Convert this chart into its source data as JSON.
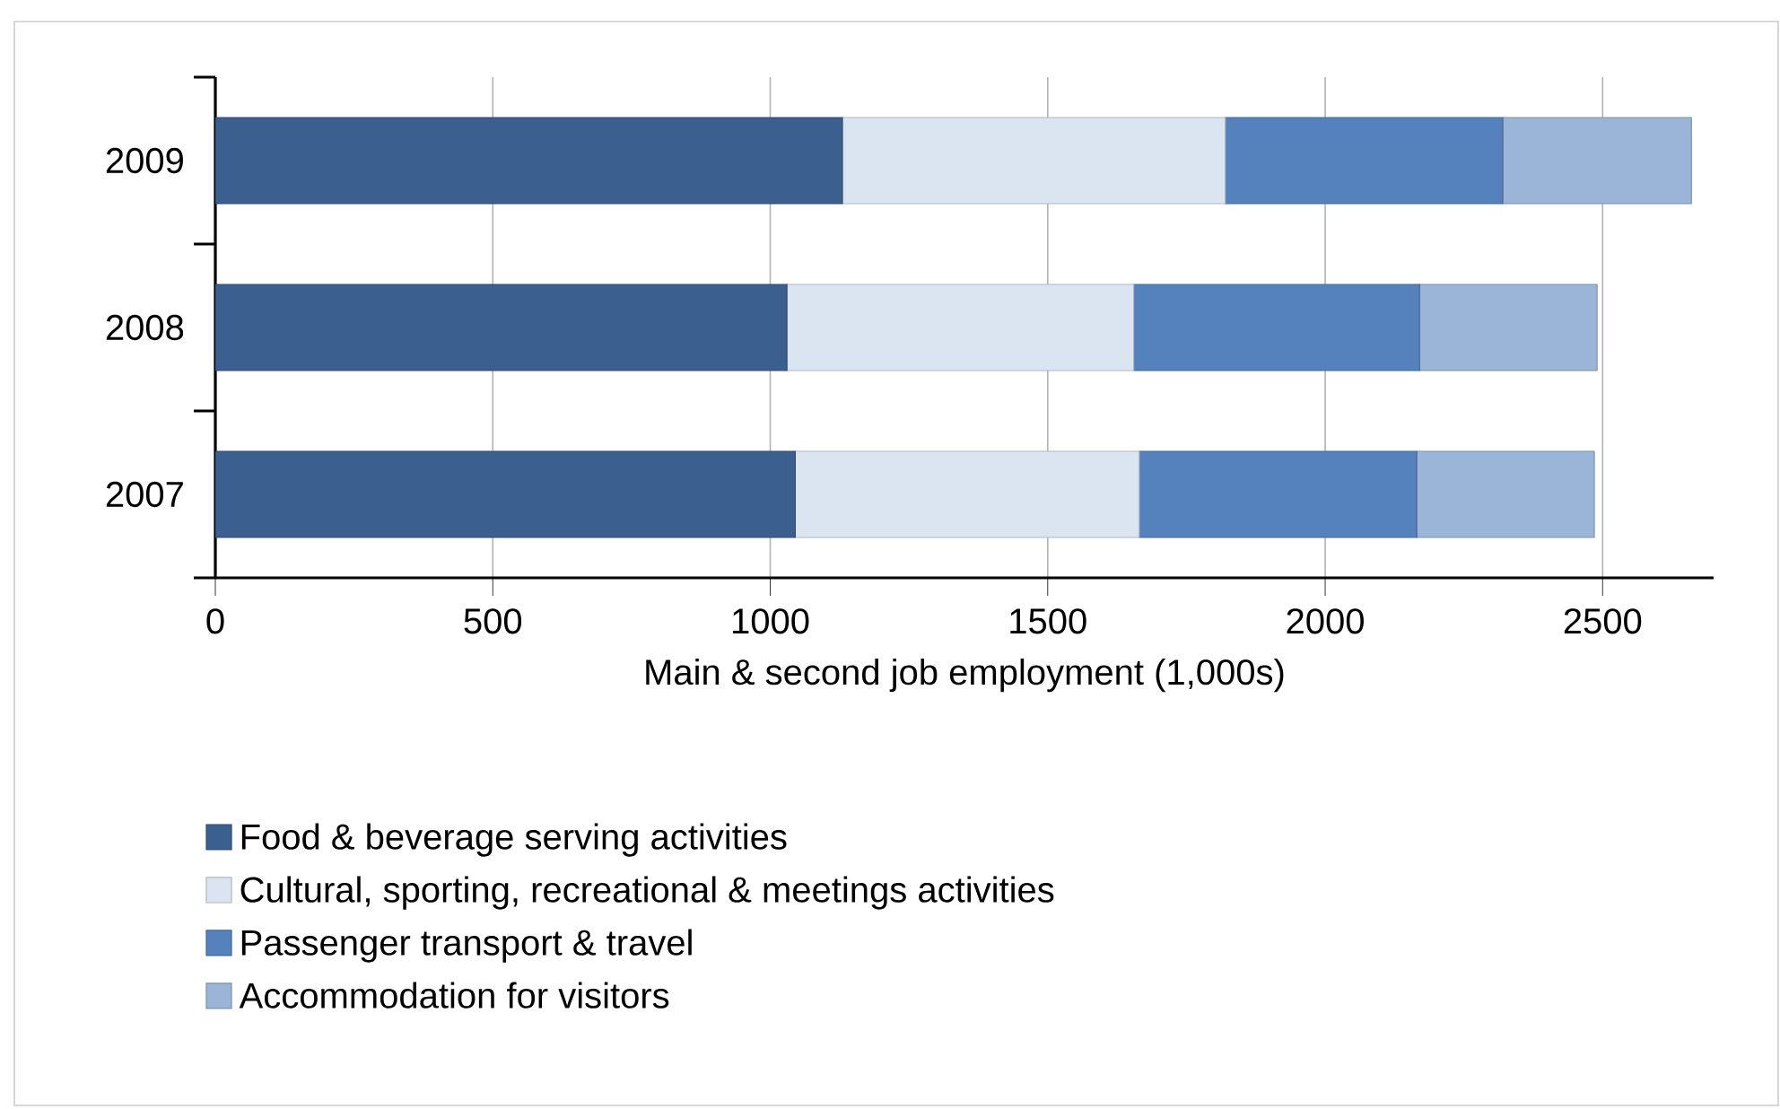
{
  "chart_data": {
    "type": "bar",
    "orientation": "horizontal",
    "stacked": true,
    "xlabel": "Main & second job employment (1,000s)",
    "categories": [
      "2009",
      "2008",
      "2007"
    ],
    "series": [
      {
        "name": "Food & beverage serving activities",
        "color": "#3b5f8f",
        "values": [
          1130,
          1030,
          1045
        ]
      },
      {
        "name": "Cultural, sporting, recreational & meetings activities",
        "color": "#dbe5f1",
        "values": [
          690,
          625,
          620
        ]
      },
      {
        "name": "Passenger transport & travel",
        "color": "#5582bd",
        "values": [
          500,
          515,
          500
        ]
      },
      {
        "name": "Accommodation for visitors",
        "color": "#9bb5d9",
        "values": [
          340,
          320,
          320
        ]
      }
    ],
    "xlim": [
      0,
      2700
    ],
    "xticks": [
      0,
      500,
      1000,
      1500,
      2000,
      2500
    ],
    "grid": "x",
    "legend": "bottom left"
  }
}
